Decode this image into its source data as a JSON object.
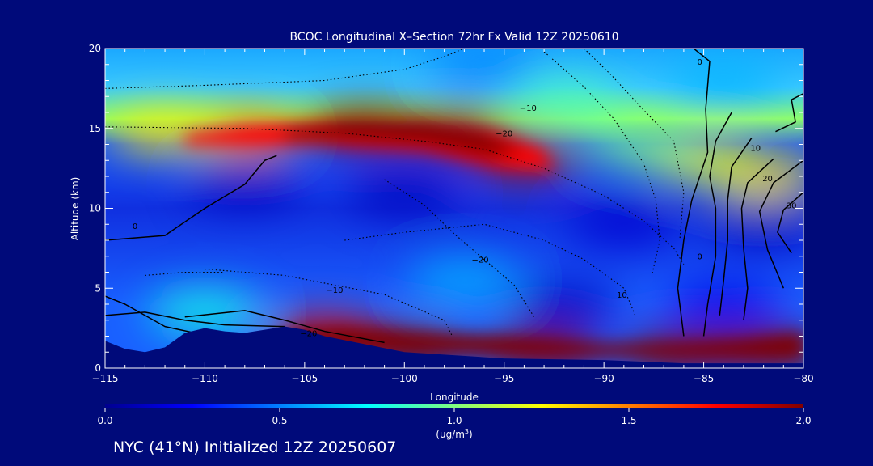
{
  "chart_data": {
    "type": "heatmap",
    "title": "BCOC Longitudinal X–Section 72hr  Fx Valid 12Z 20250610",
    "xlabel": "Longitude",
    "ylabel": "Altitude (km)",
    "xlim": [
      -115,
      -80
    ],
    "ylim": [
      0,
      20
    ],
    "x_ticks": [
      -115,
      -110,
      -105,
      -100,
      -95,
      -90,
      -85,
      -80
    ],
    "x_tick_labels": [
      "−115",
      "−110",
      "−105",
      "−100",
      "−95",
      "−90",
      "−85",
      "−80"
    ],
    "y_ticks": [
      0,
      5,
      10,
      15,
      20
    ],
    "y_tick_labels": [
      "0",
      "5",
      "10",
      "15",
      "20"
    ],
    "y_minor_step": 1,
    "x_minor_step": 1,
    "colorbar": {
      "min": 0.0,
      "max": 2.0,
      "ticks": [
        0.0,
        0.5,
        1.0,
        1.5,
        2.0
      ],
      "tick_labels": [
        "0.0",
        "0.5",
        "1.0",
        "1.5",
        "2.0"
      ],
      "units_label": "(ug/m",
      "units_sup": "3",
      "units_close": ")",
      "colormap": "jet"
    },
    "features": [
      {
        "lon": -97.5,
        "alt": 14.8,
        "value": 2.0
      },
      {
        "lon": -102.0,
        "alt": 15.0,
        "value": 2.0
      },
      {
        "lon": -94.0,
        "alt": 13.2,
        "value": 1.9
      },
      {
        "lon": -108.0,
        "alt": 14.6,
        "value": 1.5
      },
      {
        "lon": -112.0,
        "alt": 14.8,
        "value": 1.3
      },
      {
        "lon": -82.0,
        "alt": 12.0,
        "value": 1.3
      },
      {
        "lon": -85.0,
        "alt": 13.0,
        "value": 1.2
      },
      {
        "lon": -88.0,
        "alt": 14.0,
        "value": 1.0
      },
      {
        "lon": -92.0,
        "alt": 16.5,
        "value": 0.9
      },
      {
        "lon": -100.0,
        "alt": 1.3,
        "value": 2.0
      },
      {
        "lon": -93.0,
        "alt": 1.1,
        "value": 2.0
      },
      {
        "lon": -86.0,
        "alt": 1.0,
        "value": 2.0
      },
      {
        "lon": -82.0,
        "alt": 1.1,
        "value": 2.0
      },
      {
        "lon": -104.0,
        "alt": 2.0,
        "value": 1.8
      },
      {
        "lon": -110.0,
        "alt": 3.5,
        "value": 0.8
      },
      {
        "lon": -97.0,
        "alt": 5.5,
        "value": 0.6
      },
      {
        "lon": -100.0,
        "alt": 11.0,
        "value": 0.1
      },
      {
        "lon": -108.0,
        "alt": 11.5,
        "value": 0.1
      },
      {
        "lon": -89.0,
        "alt": 9.0,
        "value": 0.15
      },
      {
        "lon": -92.0,
        "alt": 4.0,
        "value": 0.1
      },
      {
        "lon": -82.0,
        "alt": 9.0,
        "value": 0.1
      },
      {
        "lon": -84.0,
        "alt": 4.0,
        "value": 0.2
      },
      {
        "lon": -96.0,
        "alt": 19.0,
        "value": 0.5
      },
      {
        "lon": -84.0,
        "alt": 18.0,
        "value": 0.6
      }
    ],
    "contour_labels": [
      {
        "text": "0",
        "lon": -85.2,
        "alt": 19.0
      },
      {
        "text": "−10",
        "lon": -93.8,
        "alt": 16.1
      },
      {
        "text": "−20",
        "lon": -95.0,
        "alt": 14.5
      },
      {
        "text": "10",
        "lon": -82.4,
        "alt": 13.6
      },
      {
        "text": "20",
        "lon": -81.8,
        "alt": 11.7
      },
      {
        "text": "30",
        "lon": -80.6,
        "alt": 10.0
      },
      {
        "text": "0",
        "lon": -113.5,
        "alt": 8.7
      },
      {
        "text": "−20",
        "lon": -96.2,
        "alt": 6.6
      },
      {
        "text": "−10",
        "lon": -103.5,
        "alt": 4.7
      },
      {
        "text": "10",
        "lon": -89.1,
        "alt": 4.4
      },
      {
        "text": "0",
        "lon": -85.2,
        "alt": 6.8
      },
      {
        "text": "−20",
        "lon": -104.8,
        "alt": 2.0
      }
    ]
  },
  "caption": "NYC (41°N) Initialized 12Z 20250607",
  "colors": {
    "background": "#000a7a",
    "terrain": "#000a7a",
    "contour": "#000000",
    "text": "#ffffff"
  }
}
